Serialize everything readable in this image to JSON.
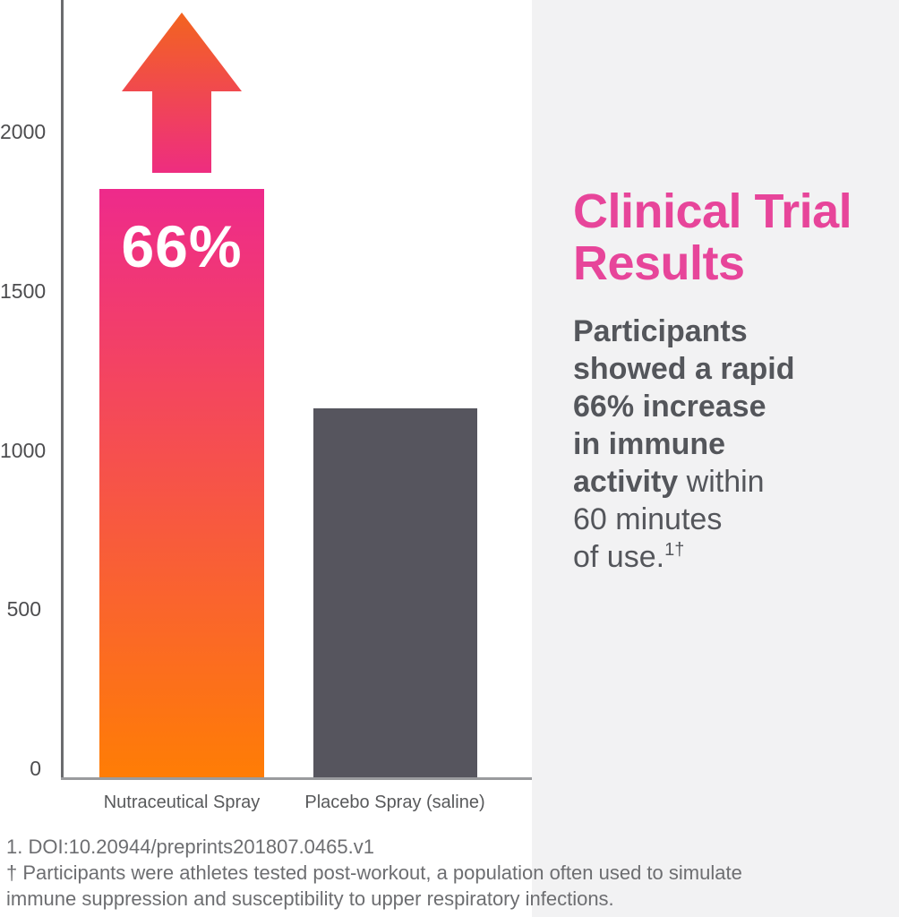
{
  "colors": {
    "panel_bg": "#f2f2f3",
    "title_pink": "#e7459a",
    "body_text": "#54565b",
    "footer_text": "#6d6e71",
    "bar_gradient_top": "#ee2a8b",
    "bar_gradient_bottom": "#ff7d05",
    "arrow_gradient_top": "#f3641f",
    "arrow_gradient_bottom": "#ee2d80",
    "placebo_bar": "#56555e",
    "axis_line": "#6b6c6f",
    "baseline": "#9a9b9e",
    "tick_label": "#4d4d4f",
    "category_label": "#58595b",
    "bar_label_text": "#ffffff"
  },
  "chart_data": {
    "type": "bar",
    "categories": [
      "Nutraceutical Spray",
      "Placebo Spray (saline)"
    ],
    "values": [
      1820,
      1130
    ],
    "yticks": [
      0,
      500,
      1000,
      1500,
      2000
    ],
    "ylim": [
      0,
      2400
    ],
    "xlabel": "",
    "ylabel": "",
    "grid": false,
    "legend": false,
    "bar_annotation": "66%",
    "annotations": [
      "upward gradient arrow above Nutraceutical Spray bar indicating increase beyond chart top"
    ]
  },
  "panel": {
    "title_lines": [
      "Clinical Trial",
      "Results"
    ],
    "paragraph_lines": [
      {
        "bold": "Participants",
        "regular": ""
      },
      {
        "bold": "showed a rapid",
        "regular": ""
      },
      {
        "bold": "66% increase",
        "regular": ""
      },
      {
        "bold": "in immune",
        "regular": ""
      },
      {
        "bold": "activity",
        "regular": " within"
      },
      {
        "bold": "",
        "regular": "60 minutes"
      },
      {
        "bold": "",
        "regular": "of use."
      }
    ],
    "superscript": "1†"
  },
  "footnotes": {
    "line1": "1. DOI:10.20944/preprints201807.0465.v1",
    "line2": "† Participants were athletes tested post-workout, a population often used to simulate",
    "line3": "immune suppression and susceptibility to upper respiratory infections."
  }
}
